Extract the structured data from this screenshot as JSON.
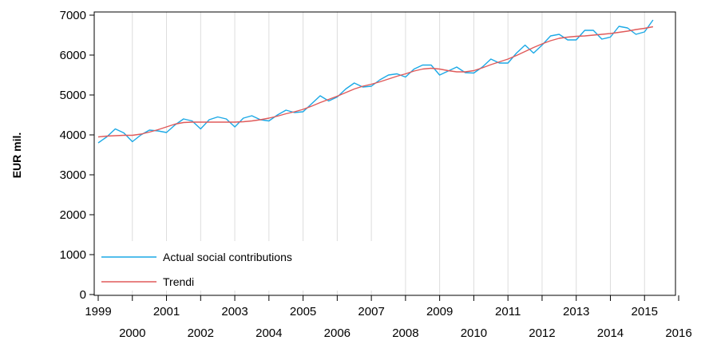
{
  "chart_data": {
    "type": "line",
    "title": "",
    "xlabel": "",
    "ylabel": "EUR mil.",
    "xlim": [
      1999,
      2016
    ],
    "ylim": [
      0,
      7000
    ],
    "yticks": [
      0,
      1000,
      2000,
      3000,
      4000,
      5000,
      6000,
      7000
    ],
    "xticks_top": [
      1999,
      2001,
      2003,
      2005,
      2007,
      2009,
      2011,
      2013,
      2015
    ],
    "xticks_bottom": [
      2000,
      2002,
      2004,
      2006,
      2008,
      2010,
      2012,
      2014,
      2016
    ],
    "grid": true,
    "legend_position": "bottom-left",
    "x_step": 0.25,
    "x_start": 1999.0,
    "series": [
      {
        "name": "Actual social contributions",
        "color": "#1ca9e6",
        "values": [
          3800,
          3950,
          4150,
          4050,
          3830,
          4000,
          4120,
          4100,
          4060,
          4250,
          4400,
          4350,
          4150,
          4380,
          4450,
          4400,
          4200,
          4420,
          4480,
          4380,
          4350,
          4500,
          4620,
          4560,
          4580,
          4780,
          4980,
          4850,
          4950,
          5150,
          5300,
          5200,
          5220,
          5380,
          5500,
          5530,
          5450,
          5650,
          5750,
          5750,
          5500,
          5600,
          5700,
          5560,
          5550,
          5700,
          5900,
          5800,
          5800,
          6050,
          6250,
          6050,
          6250,
          6480,
          6520,
          6380,
          6380,
          6620,
          6620,
          6400,
          6450,
          6720,
          6680,
          6520,
          6580,
          6880
        ]
      },
      {
        "name": "Trendi",
        "color": "#e05a5a",
        "values": [
          3950,
          3970,
          3980,
          3990,
          3990,
          4020,
          4070,
          4130,
          4200,
          4270,
          4310,
          4320,
          4320,
          4320,
          4320,
          4320,
          4320,
          4330,
          4350,
          4380,
          4420,
          4470,
          4530,
          4580,
          4640,
          4720,
          4810,
          4890,
          4970,
          5060,
          5150,
          5220,
          5270,
          5330,
          5400,
          5470,
          5530,
          5600,
          5650,
          5670,
          5650,
          5610,
          5580,
          5580,
          5610,
          5680,
          5760,
          5830,
          5900,
          5990,
          6090,
          6190,
          6280,
          6360,
          6420,
          6450,
          6470,
          6480,
          6500,
          6520,
          6540,
          6570,
          6600,
          6640,
          6670,
          6710
        ]
      }
    ]
  }
}
